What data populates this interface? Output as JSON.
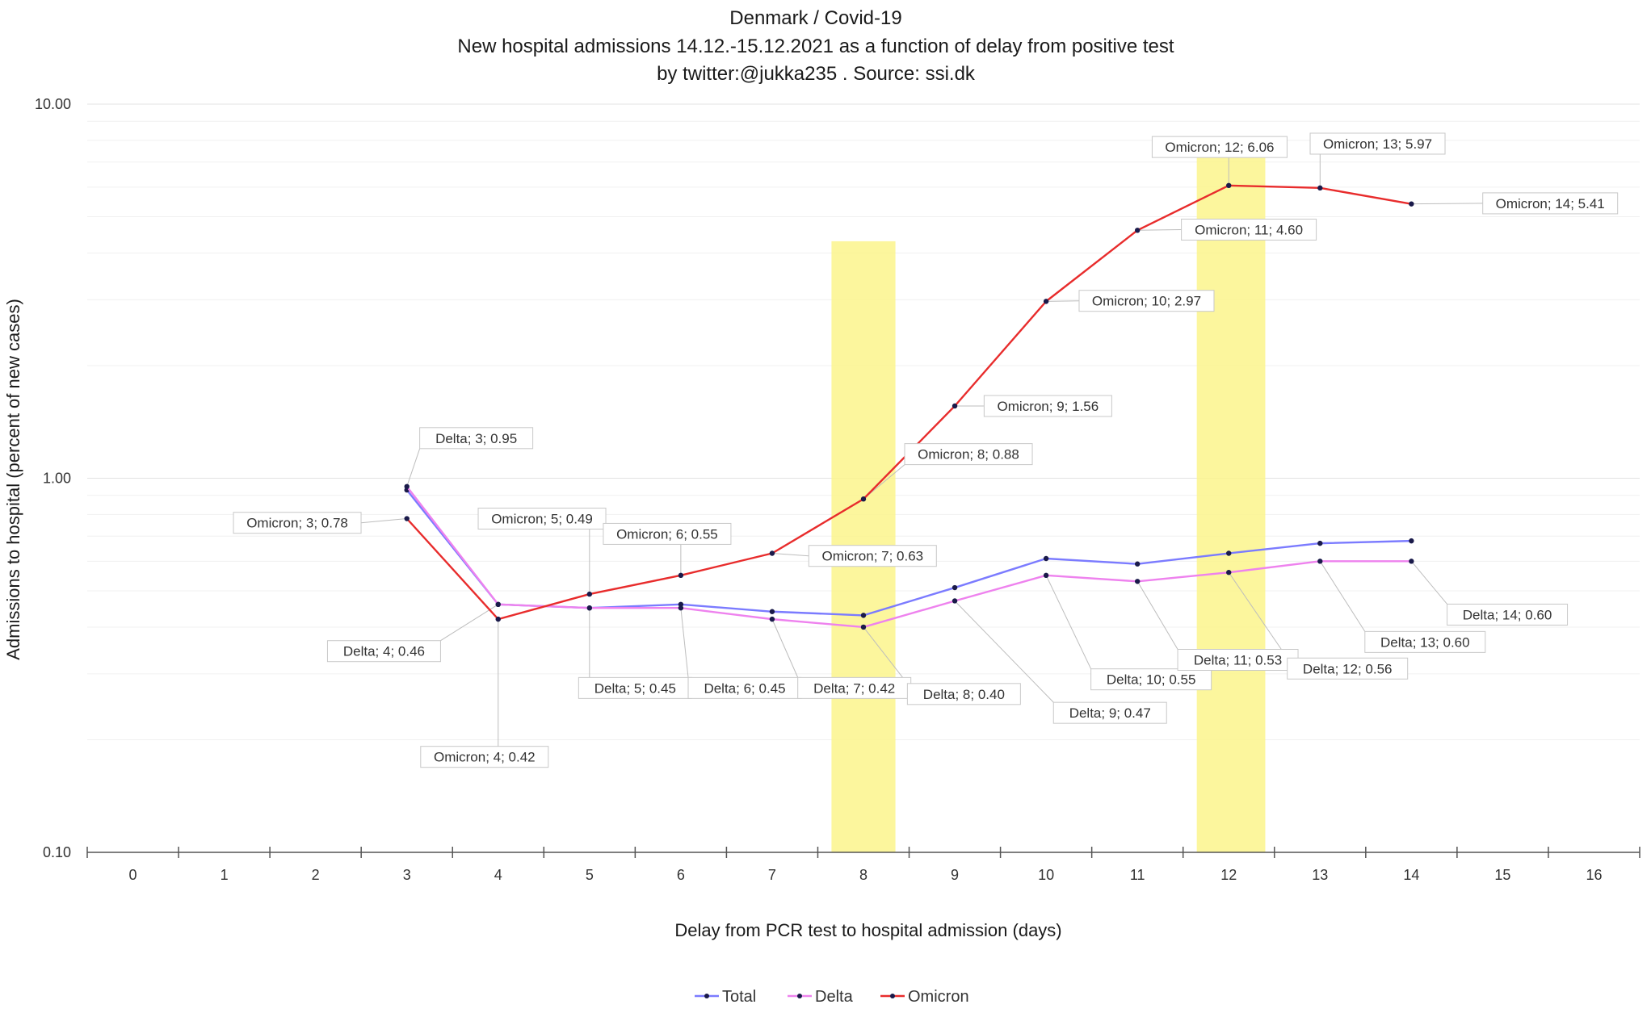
{
  "chart_data": {
    "type": "line",
    "title": "Denmark / Covid-19",
    "subtitle": [
      "New hospital admissions 14.12.-15.12.2021 as a function of delay from positive test",
      "by twitter:@jukka235 . Source: ssi.dk"
    ],
    "xlabel": "Delay from PCR test to hospital admission (days)",
    "ylabel": "Admissions to hospital (percent of new cases)",
    "y_scale": "log",
    "ylim": [
      0.1,
      10
    ],
    "y_ticks": [
      {
        "value": 0.1,
        "label": "0.10"
      },
      {
        "value": 1,
        "label": "1.00"
      },
      {
        "value": 10,
        "label": "10.00"
      }
    ],
    "xlim": [
      -0.5,
      16.5
    ],
    "x_ticks": [
      "0",
      "1",
      "2",
      "3",
      "4",
      "5",
      "6",
      "7",
      "8",
      "9",
      "10",
      "11",
      "12",
      "13",
      "14",
      "15",
      "16"
    ],
    "grid": true,
    "legend_position": "bottom",
    "highlight_bands": [
      {
        "x_from": 7.65,
        "x_to": 8.35,
        "y_from": 0.1,
        "y_to": 4.3,
        "color": "#fbf58c"
      },
      {
        "x_from": 11.65,
        "x_to": 12.4,
        "y_from": 0.1,
        "y_to": 7.5,
        "color": "#fbf58c"
      }
    ],
    "series": [
      {
        "name": "Total",
        "color": "#7b7bff",
        "x": [
          3,
          4,
          5,
          6,
          7,
          8,
          9,
          10,
          11,
          12,
          13,
          14
        ],
        "y": [
          0.93,
          0.46,
          0.45,
          0.46,
          0.44,
          0.43,
          0.51,
          0.61,
          0.59,
          0.63,
          0.67,
          0.68
        ],
        "labels": []
      },
      {
        "name": "Delta",
        "color": "#ee82ee",
        "x": [
          3,
          4,
          5,
          6,
          7,
          8,
          9,
          10,
          11,
          12,
          13,
          14
        ],
        "y": [
          0.95,
          0.46,
          0.45,
          0.45,
          0.42,
          0.4,
          0.47,
          0.55,
          0.53,
          0.56,
          0.6,
          0.6
        ],
        "labels": [
          {
            "text": "Delta; 3; 0.95",
            "lx": 3.76,
            "ly": 1.28
          },
          {
            "text": "Delta; 4; 0.46",
            "lx": 2.75,
            "ly": 0.345
          },
          {
            "text": "Delta; 5; 0.45",
            "lx": 5.5,
            "ly": 0.275
          },
          {
            "text": "Delta; 6; 0.45",
            "lx": 6.7,
            "ly": 0.275
          },
          {
            "text": "Delta; 7; 0.42",
            "lx": 7.9,
            "ly": 0.275
          },
          {
            "text": "Delta; 8; 0.40",
            "lx": 9.1,
            "ly": 0.265
          },
          {
            "text": "Delta; 9; 0.47",
            "lx": 10.7,
            "ly": 0.236
          },
          {
            "text": "Delta; 10; 0.55",
            "lx": 11.15,
            "ly": 0.29
          },
          {
            "text": "Delta; 11; 0.53",
            "lx": 12.1,
            "ly": 0.327
          },
          {
            "text": "Delta; 12; 0.56",
            "lx": 13.3,
            "ly": 0.31
          },
          {
            "text": "Delta; 13; 0.60",
            "lx": 14.15,
            "ly": 0.365
          },
          {
            "text": "Delta; 14; 0.60",
            "lx": 15.05,
            "ly": 0.432
          }
        ]
      },
      {
        "name": "Omicron",
        "color": "#e82c2c",
        "x": [
          3,
          4,
          5,
          6,
          7,
          8,
          9,
          10,
          11,
          12,
          13,
          14
        ],
        "y": [
          0.78,
          0.42,
          0.49,
          0.55,
          0.63,
          0.88,
          1.56,
          2.97,
          4.6,
          6.06,
          5.97,
          5.41
        ],
        "labels": [
          {
            "text": "Omicron; 3; 0.78",
            "lx": 1.8,
            "ly": 0.76
          },
          {
            "text": "Omicron; 4; 0.42",
            "lx": 3.85,
            "ly": 0.18
          },
          {
            "text": "Omicron; 5; 0.49",
            "lx": 4.48,
            "ly": 0.78
          },
          {
            "text": "Omicron; 6; 0.55",
            "lx": 5.85,
            "ly": 0.71
          },
          {
            "text": "Omicron; 7; 0.63",
            "lx": 8.1,
            "ly": 0.62
          },
          {
            "text": "Omicron; 8; 0.88",
            "lx": 9.15,
            "ly": 1.16
          },
          {
            "text": "Omicron; 9; 1.56",
            "lx": 10.02,
            "ly": 1.56
          },
          {
            "text": "Omicron; 10; 2.97",
            "lx": 11.1,
            "ly": 2.98
          },
          {
            "text": "Omicron; 11; 4.60",
            "lx": 12.22,
            "ly": 4.62
          },
          {
            "text": "Omicron; 12; 6.06",
            "lx": 11.9,
            "ly": 7.68
          },
          {
            "text": "Omicron; 13; 5.97",
            "lx": 13.63,
            "ly": 7.84
          },
          {
            "text": "Omicron; 14; 5.41",
            "lx": 15.52,
            "ly": 5.43
          }
        ]
      }
    ]
  }
}
